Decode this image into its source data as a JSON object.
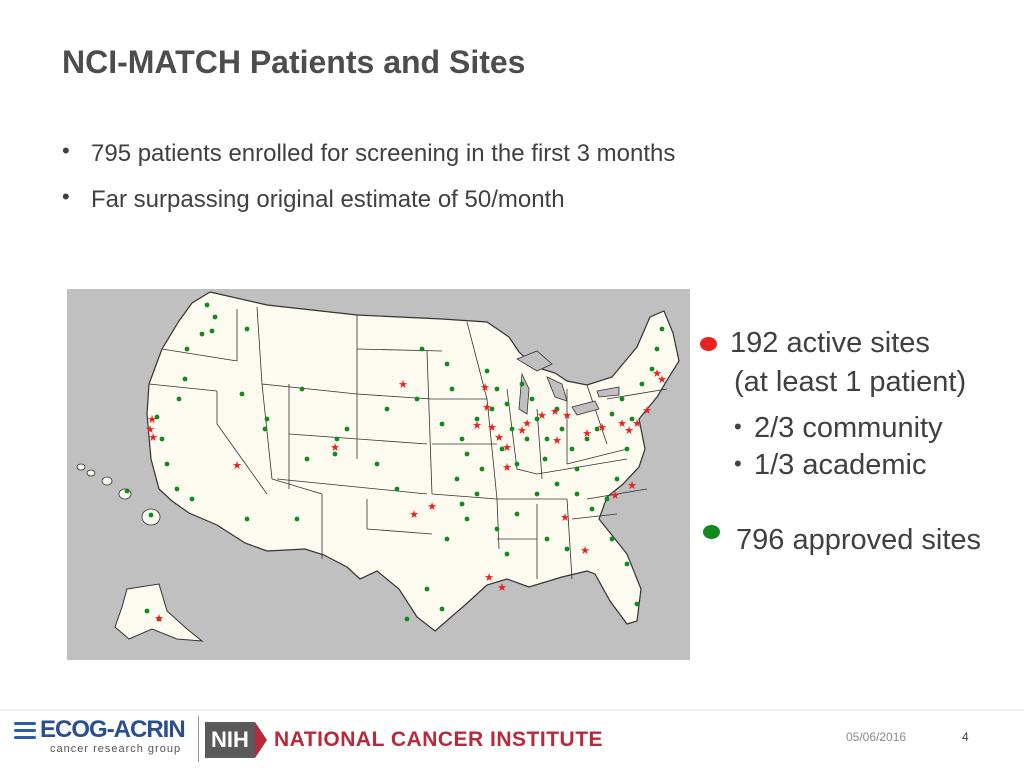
{
  "slide": {
    "title": "NCI-MATCH Patients and Sites",
    "bullets": [
      "795 patients enrolled for screening in the first 3 months",
      "Far surpassing original estimate of 50/month"
    ],
    "bullet_glyph": "•"
  },
  "legend": {
    "active": {
      "color": "#e8231f",
      "line1": "192 active sites",
      "line2": "(at least 1 patient)",
      "sub": [
        "2/3 community",
        "1/3 academic"
      ]
    },
    "approved": {
      "color": "#128a1e",
      "label": "796 approved sites"
    }
  },
  "map": {
    "icon": "us-map-icon",
    "land_color": "#fdfaf0",
    "water_color": "#c0c0c0",
    "border_color": "#333333"
  },
  "footer": {
    "ecog_name": "ECOG-ACRIN",
    "ecog_sub": "cancer research group",
    "nih": "NIH",
    "nci": "NATIONAL CANCER INSTITUTE",
    "date": "05/06/2016",
    "page": "4"
  }
}
